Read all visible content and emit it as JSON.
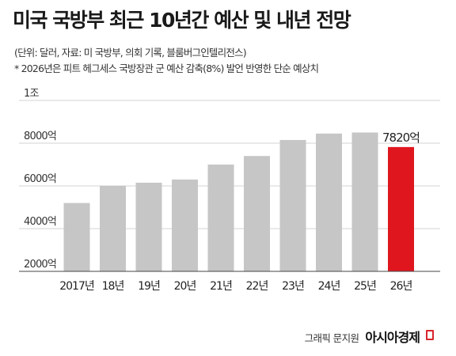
{
  "title": "미국 국방부 최근 10년간 예산 및 내년 전망",
  "notes": {
    "unit": "(단위: 달러, 자료: 미 국방부, 의회 기록, 블룸버그인텔리전스)",
    "footnote": "* 2026년은 피트 헤그세스 국방장관 군 예산 감축(8%) 발언 반영한 단순 예상치"
  },
  "credit": {
    "by": "그래픽 문지원",
    "brand": "아시아경제"
  },
  "colors": {
    "bar": "#c6c6c6",
    "highlight": "#e0161f",
    "grid": "#d3d3d3"
  },
  "chart_data": {
    "type": "bar",
    "categories": [
      "2017년",
      "18년",
      "19년",
      "20년",
      "21년",
      "22년",
      "23년",
      "24년",
      "25년",
      "26년"
    ],
    "values": [
      5200,
      6000,
      6150,
      6300,
      7000,
      7400,
      8150,
      8450,
      8500,
      7820
    ],
    "highlight_index": 9,
    "highlight_label": "7820억",
    "y_ticks": [
      {
        "value": 2000,
        "label": "2000억"
      },
      {
        "value": 4000,
        "label": "4000억"
      },
      {
        "value": 6000,
        "label": "6000억"
      },
      {
        "value": 8000,
        "label": "8000억"
      },
      {
        "value": 10000,
        "label": "1조"
      }
    ],
    "ylim": [
      2000,
      10000
    ],
    "grid": true
  }
}
